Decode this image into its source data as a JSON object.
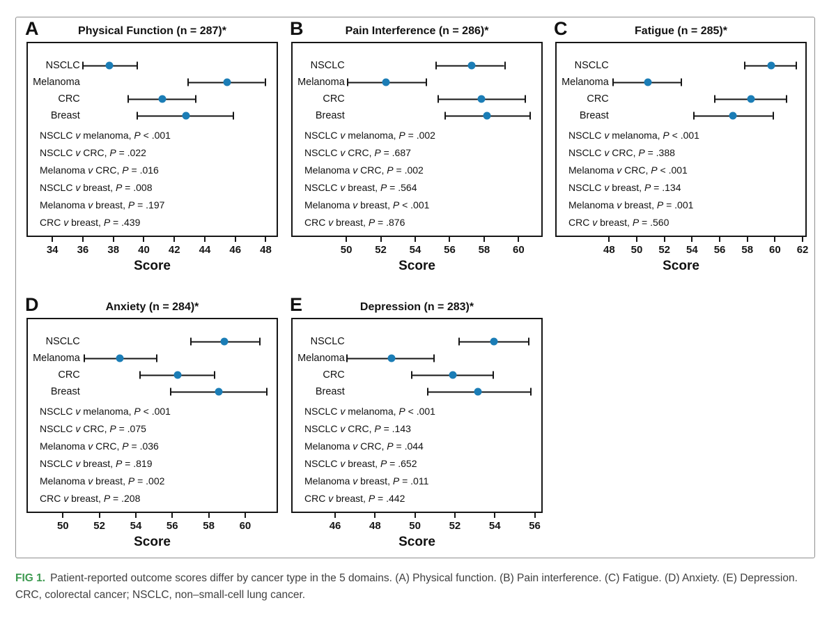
{
  "figure": {
    "caption": {
      "label": "FIG 1.",
      "text": "Patient-reported outcome scores differ by cancer type in the 5 domains. (A) Physical function. (B) Pain interference. (C) Fatigue. (D) Anxiety. (E) Depression. CRC, colorectal cancer; NSCLC, non–small-cell lung cancer."
    },
    "colors": {
      "point": "#1b7db6",
      "caption_label": "#3d9a50",
      "box_border": "#161616",
      "outer_border": "#8f8f8f"
    }
  },
  "chart_data": [
    {
      "panel": "A",
      "type": "scatter",
      "title": "Physical Function (n = 287)*",
      "xlabel": "Score",
      "axis": {
        "min": 32.3,
        "max": 48.8,
        "ticks": [
          34,
          36,
          38,
          40,
          42,
          44,
          46,
          48
        ]
      },
      "series": [
        {
          "label": "NSCLC",
          "value": 37.7,
          "ci": [
            35.9,
            39.6
          ]
        },
        {
          "label": "Melanoma",
          "value": 45.5,
          "ci": [
            42.9,
            48.1
          ]
        },
        {
          "label": "CRC",
          "value": 41.2,
          "ci": [
            38.9,
            43.5
          ]
        },
        {
          "label": "Breast",
          "value": 42.8,
          "ci": [
            39.5,
            46.0
          ]
        }
      ],
      "comparisons": [
        "NSCLC *v* melanoma, *P* < .001",
        "NSCLC *v* CRC, *P* = .022",
        "Melanoma *v* CRC, *P* = .016",
        "NSCLC *v* breast, *P* = .008",
        "Melanoma *v* breast, *P* = .197",
        "CRC *v* breast, *P* = .439"
      ]
    },
    {
      "panel": "B",
      "type": "scatter",
      "title": "Pain Interference (n = 286)*",
      "xlabel": "Score",
      "axis": {
        "min": 46.8,
        "max": 61.4,
        "ticks": [
          50,
          52,
          54,
          56,
          58,
          60
        ]
      },
      "series": [
        {
          "label": "NSCLC",
          "value": 57.3,
          "ci": [
            55.2,
            59.3
          ]
        },
        {
          "label": "Melanoma",
          "value": 52.3,
          "ci": [
            50.0,
            54.7
          ]
        },
        {
          "label": "CRC",
          "value": 57.9,
          "ci": [
            55.3,
            60.5
          ]
        },
        {
          "label": "Breast",
          "value": 58.2,
          "ci": [
            55.7,
            60.8
          ]
        }
      ],
      "comparisons": [
        "NSCLC *v* melanoma, *P* = .002",
        "NSCLC *v* CRC, *P* = .687",
        "Melanoma *v* CRC, *P* = .002",
        "NSCLC *v* breast, *P* = .564",
        "Melanoma *v* breast, *P* < .001",
        "CRC *v* breast, *P* = .876"
      ]
    },
    {
      "panel": "C",
      "type": "scatter",
      "title": "Fatigue (n = 285)*",
      "xlabel": "Score",
      "axis": {
        "min": 44.1,
        "max": 62.3,
        "ticks": [
          48,
          50,
          52,
          54,
          56,
          58,
          60,
          62
        ]
      },
      "series": [
        {
          "label": "NSCLC",
          "value": 59.8,
          "ci": [
            57.8,
            61.7
          ]
        },
        {
          "label": "Melanoma",
          "value": 50.8,
          "ci": [
            48.2,
            53.3
          ]
        },
        {
          "label": "CRC",
          "value": 58.3,
          "ci": [
            55.6,
            61.0
          ]
        },
        {
          "label": "Breast",
          "value": 57.0,
          "ci": [
            54.1,
            60.0
          ]
        }
      ],
      "comparisons": [
        "NSCLC *v* melanoma, *P* < .001",
        "NSCLC *v* CRC, *P* = .388",
        "Melanoma *v* CRC, *P* < .001",
        "NSCLC *v* breast, *P* = .134",
        "Melanoma *v* breast, *P* = .001",
        "CRC *v* breast, *P* = .560"
      ]
    },
    {
      "panel": "D",
      "type": "scatter",
      "title": "Anxiety (n = 284)*",
      "xlabel": "Score",
      "axis": {
        "min": 48.0,
        "max": 61.8,
        "ticks": [
          50,
          52,
          54,
          56,
          58,
          60
        ]
      },
      "series": [
        {
          "label": "NSCLC",
          "value": 58.9,
          "ci": [
            57.0,
            60.9
          ]
        },
        {
          "label": "Melanoma",
          "value": 53.1,
          "ci": [
            51.1,
            55.2
          ]
        },
        {
          "label": "CRC",
          "value": 56.3,
          "ci": [
            54.2,
            58.4
          ]
        },
        {
          "label": "Breast",
          "value": 58.6,
          "ci": [
            55.9,
            61.3
          ]
        }
      ],
      "comparisons": [
        "NSCLC *v* melanoma, *P* < .001",
        "NSCLC *v* CRC, *P* = .075",
        "Melanoma *v* CRC, *P* = .036",
        "NSCLC *v* breast, *P* = .819",
        "Melanoma *v* breast, *P* = .002",
        "CRC *v* breast, *P* = .208"
      ]
    },
    {
      "panel": "E",
      "type": "scatter",
      "title": "Depression (n = 283)*",
      "xlabel": "Score",
      "axis": {
        "min": 43.8,
        "max": 56.4,
        "ticks": [
          46,
          48,
          50,
          52,
          54,
          56
        ]
      },
      "series": [
        {
          "label": "NSCLC",
          "value": 54.0,
          "ci": [
            52.2,
            55.8
          ]
        },
        {
          "label": "Melanoma",
          "value": 48.8,
          "ci": [
            46.5,
            51.0
          ]
        },
        {
          "label": "CRC",
          "value": 51.9,
          "ci": [
            49.8,
            54.0
          ]
        },
        {
          "label": "Breast",
          "value": 53.2,
          "ci": [
            50.6,
            55.9
          ]
        }
      ],
      "comparisons": [
        "NSCLC *v* melanoma, *P* < .001",
        "NSCLC *v* CRC, *P* = .143",
        "Melanoma *v* CRC, *P* = .044",
        "NSCLC *v* breast, *P* = .652",
        "Melanoma *v* breast, *P* = .011",
        "CRC *v* breast, *P* = .442"
      ]
    }
  ]
}
